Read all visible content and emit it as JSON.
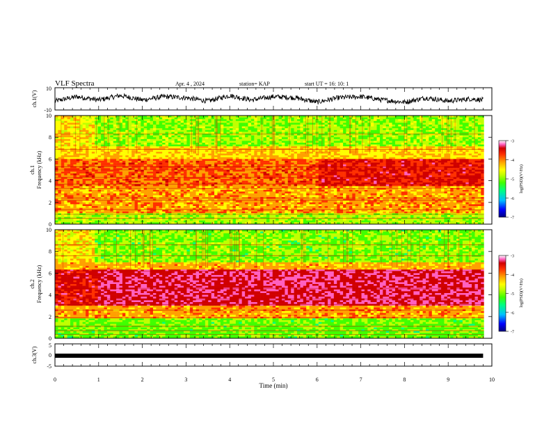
{
  "header": {
    "title": "VLF Spectra",
    "date": "Apr. 4  , 2024",
    "station": "station= KAP",
    "start": "start  UT =   16: 10: 1"
  },
  "colorbar": {
    "label": "log(PSD)(V²/Hz)",
    "ticks": [
      "-3",
      "-4",
      "-5",
      "-6",
      "-7"
    ],
    "colors": [
      "#000080",
      "#0000ff",
      "#00c0ff",
      "#00ff80",
      "#40ff00",
      "#c0ff00",
      "#ffff00",
      "#ffa000",
      "#ff3000",
      "#d00000",
      "#ff60c0",
      "#ffffff"
    ]
  },
  "chart_data": [
    {
      "type": "line",
      "name": "ch1-waveform",
      "ylabel": "ch.1(V)",
      "yticks": [
        "10",
        "-10"
      ],
      "ylim": [
        -10,
        10
      ],
      "xlim": [
        0,
        10
      ],
      "x": [
        0,
        0.5,
        1.0,
        1.5,
        2.0,
        2.5,
        3.0,
        3.5,
        4.0,
        4.5,
        5.0,
        5.5,
        6.0,
        6.5,
        7.0,
        7.5,
        8.0,
        8.5,
        9.0,
        9.5,
        9.8
      ],
      "y": [
        -2,
        2,
        -1,
        3,
        -1,
        2,
        1,
        -2,
        3,
        -1,
        2,
        1,
        -3,
        1,
        2,
        -1,
        -3,
        1,
        -2,
        0,
        -1
      ]
    },
    {
      "type": "heatmap",
      "name": "ch1-spectrogram",
      "ylabel": "ch.1",
      "ylabel2": "Frequency (kHz)",
      "yticks": [
        "0",
        "2",
        "4",
        "6",
        "8",
        "10"
      ],
      "ylim": [
        0,
        10
      ],
      "xlim": [
        0,
        10
      ],
      "zlim": [
        -7,
        -3
      ]
    },
    {
      "type": "heatmap",
      "name": "ch2-spectrogram",
      "ylabel": "ch.2",
      "ylabel2": "Frequency (kHz)",
      "yticks": [
        "0",
        "2",
        "4",
        "6",
        "8",
        "10"
      ],
      "ylim": [
        0,
        10
      ],
      "xlim": [
        0,
        10
      ],
      "zlim": [
        -7,
        -3
      ]
    },
    {
      "type": "line",
      "name": "ch3-waveform",
      "ylabel": "ch.3(V)",
      "yticks": [
        "5",
        "0",
        "-5"
      ],
      "ylim": [
        -5,
        5
      ],
      "xlim": [
        0,
        10
      ],
      "x": [
        0,
        9.8
      ],
      "y": [
        0,
        0
      ]
    }
  ],
  "xaxis": {
    "label": "Time  (min)",
    "ticks": [
      "0",
      "1",
      "2",
      "3",
      "4",
      "5",
      "6",
      "7",
      "8",
      "9",
      "10"
    ]
  }
}
